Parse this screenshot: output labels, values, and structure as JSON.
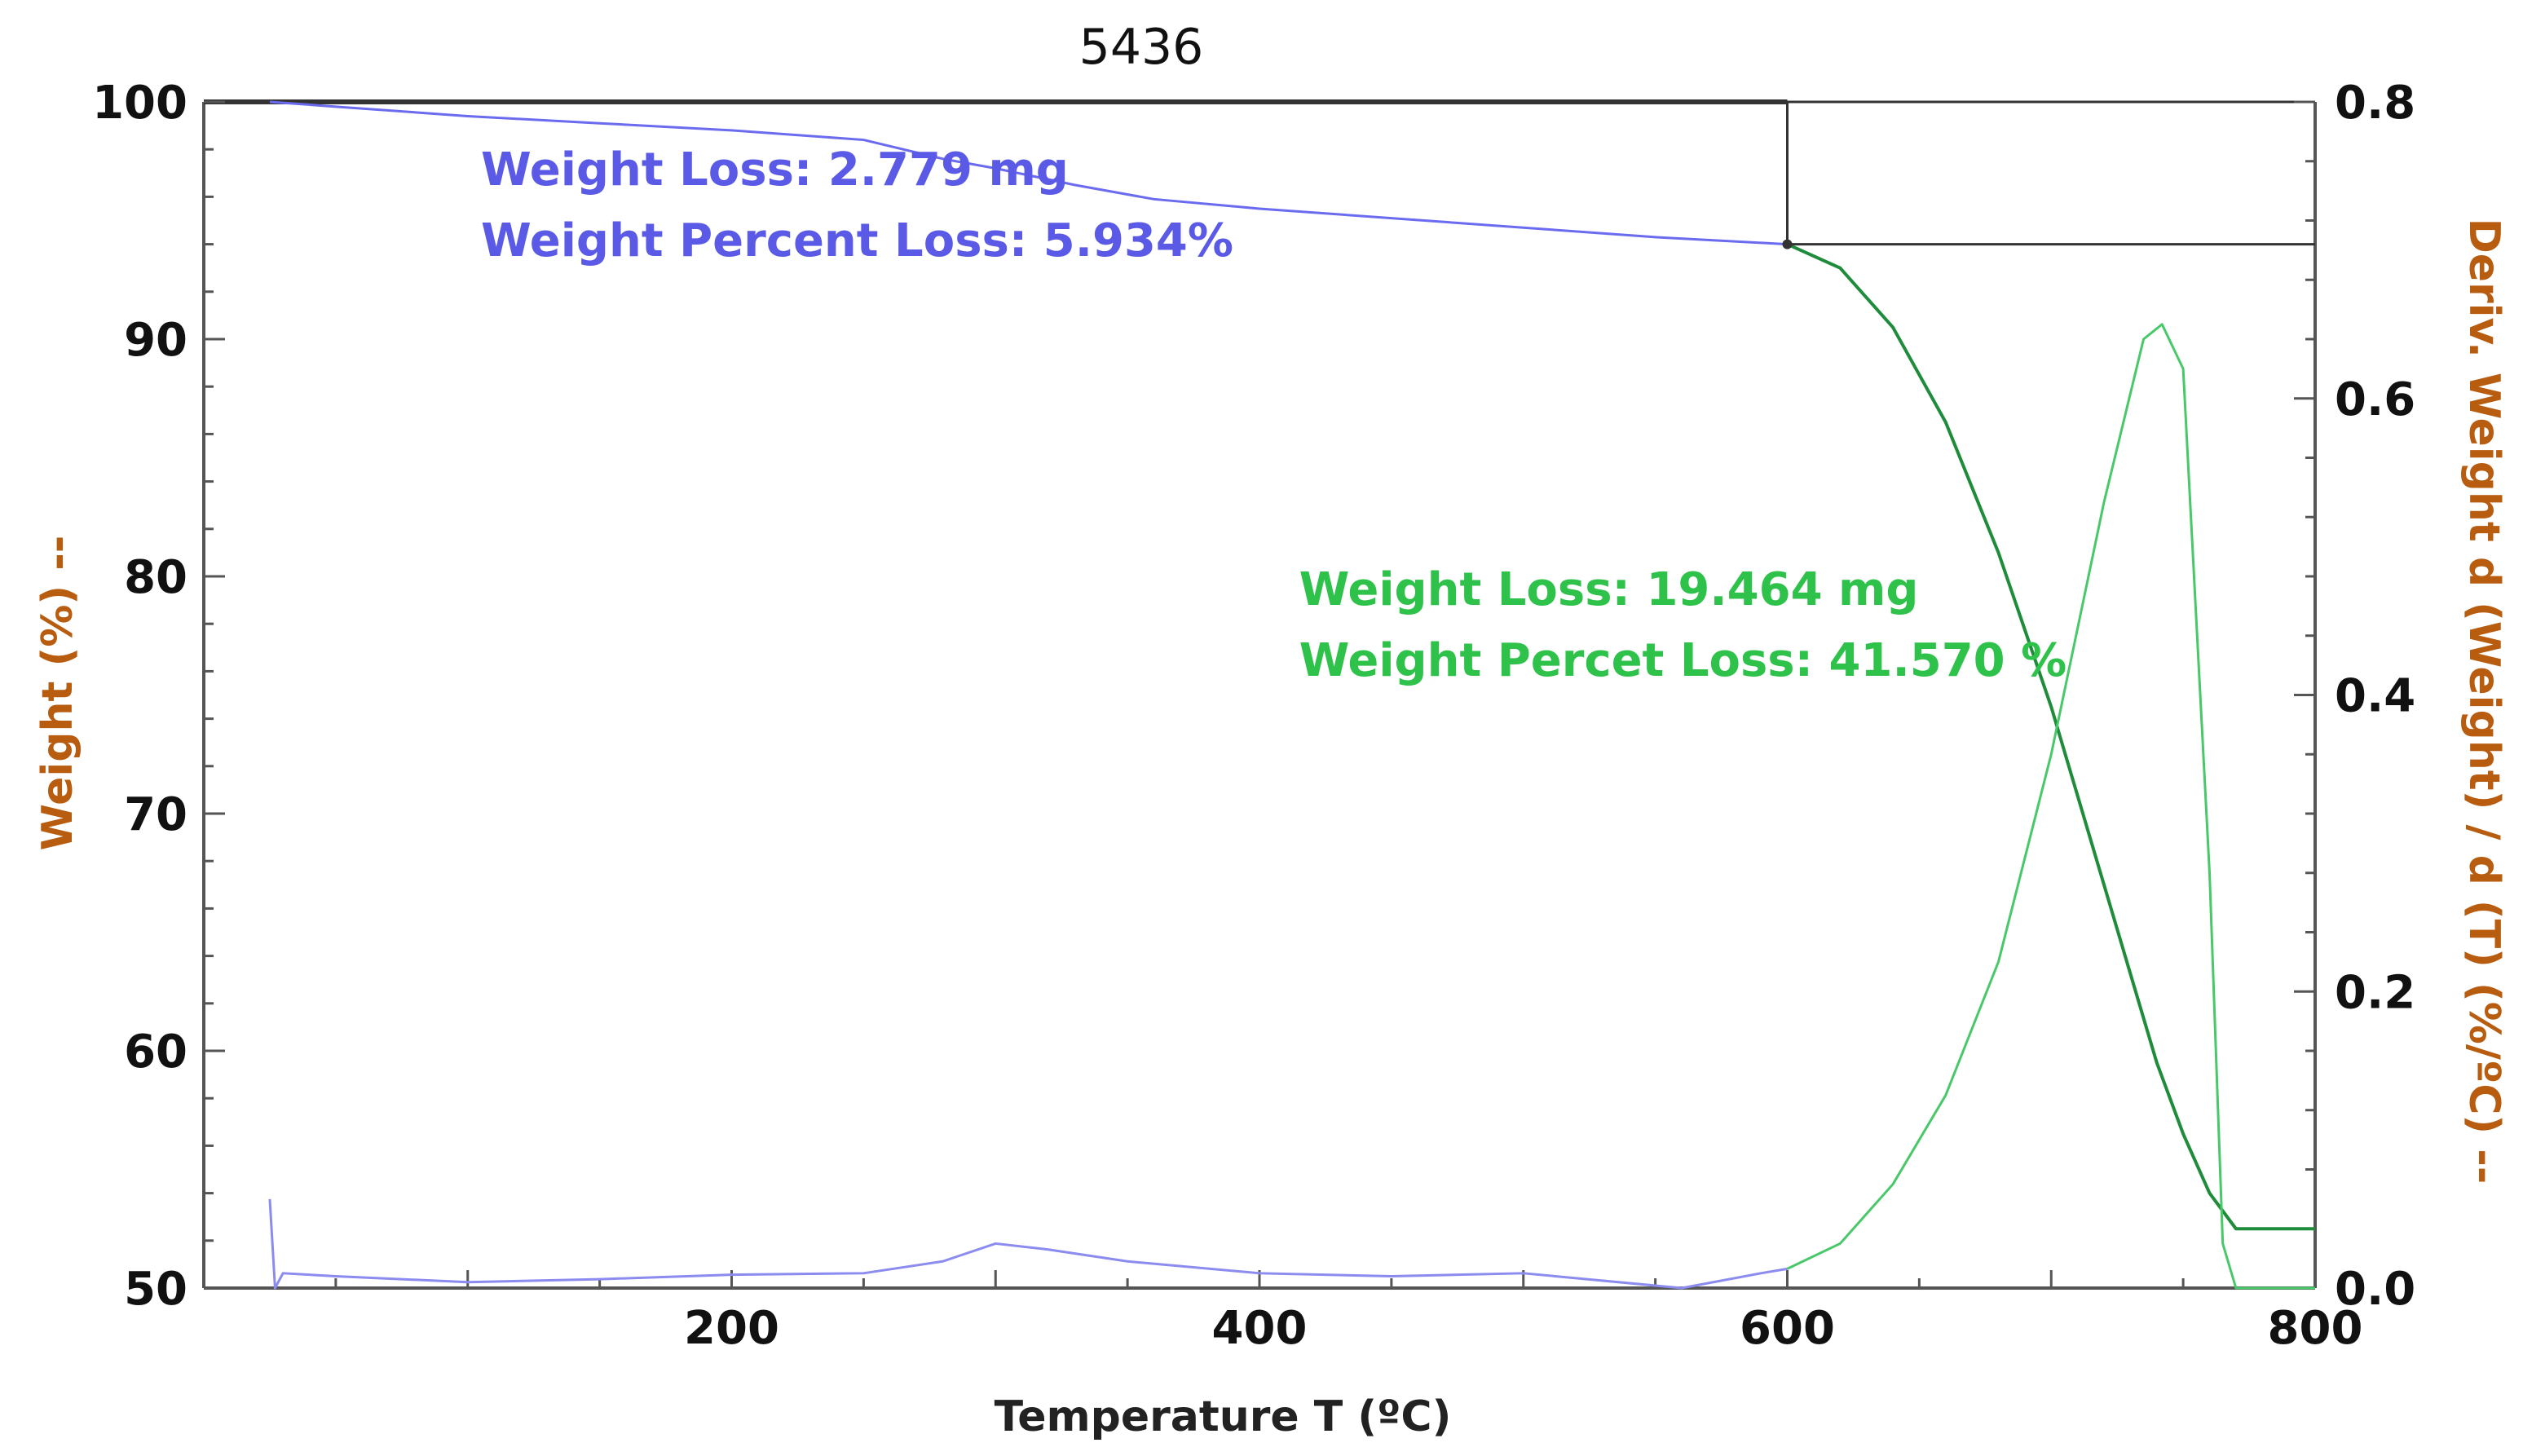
{
  "chart_data": {
    "type": "line",
    "title": "5436",
    "xlabel": "Temperature T (ºC)",
    "ylabel": "Weight (%) --",
    "y2label": "Deriv. Weight d (Weight) / d (T) (%/ºC) --",
    "xlim": [
      0,
      800
    ],
    "ylim": [
      50,
      100
    ],
    "y2lim": [
      0,
      0.8
    ],
    "x_ticks": [
      200,
      400,
      600,
      800
    ],
    "y_ticks": [
      50,
      60,
      70,
      80,
      90,
      100
    ],
    "y2_ticks": [
      "0.0",
      "0.2",
      "0.4",
      "0.6",
      "0.8"
    ],
    "grid": false,
    "colors": {
      "weight_stage1": "#6b6bef",
      "weight_stage2": "#1e8c3a",
      "deriv_stage1": "#8b8bf0",
      "deriv_stage2": "#48c868",
      "ylabel": "#b85c10",
      "y2label": "#b85c10",
      "axis": "#555555"
    },
    "series": [
      {
        "axis": "left",
        "x": [
          25,
          50,
          100,
          150,
          200,
          250,
          280,
          300,
          330,
          360,
          400,
          450,
          500,
          550,
          600
        ],
        "y": [
          100,
          99.8,
          99.4,
          99.1,
          98.8,
          98.4,
          97.6,
          97.2,
          96.5,
          95.9,
          95.5,
          95.1,
          94.7,
          94.3,
          94.0
        ]
      },
      {
        "axis": "left",
        "x": [
          600,
          620,
          640,
          660,
          680,
          700,
          720,
          740,
          750,
          760,
          770,
          800
        ],
        "y": [
          94.0,
          93.0,
          90.5,
          86.5,
          81.0,
          74.5,
          67.0,
          59.5,
          56.5,
          54.0,
          52.5,
          52.5
        ]
      },
      {
        "axis": "right",
        "x": [
          25,
          27,
          30,
          50,
          100,
          150,
          200,
          250,
          280,
          300,
          320,
          350,
          400,
          450,
          500,
          560,
          590,
          600
        ],
        "y": [
          0.06,
          0.0,
          0.01,
          0.008,
          0.004,
          0.006,
          0.009,
          0.01,
          0.018,
          0.03,
          0.026,
          0.018,
          0.01,
          0.008,
          0.01,
          0.0,
          0.01,
          0.013
        ]
      },
      {
        "axis": "right",
        "x": [
          600,
          620,
          640,
          660,
          680,
          700,
          720,
          735,
          742,
          750,
          760,
          765,
          770,
          800
        ],
        "y": [
          0.013,
          0.03,
          0.07,
          0.13,
          0.22,
          0.36,
          0.53,
          0.64,
          0.65,
          0.62,
          0.28,
          0.03,
          0.0,
          0.0
        ]
      }
    ],
    "markers": {
      "vertical_x": 600,
      "horizontal_y": 94.0
    },
    "annotations": [
      {
        "id": "stage1-loss",
        "text": "Weight Loss: 2.779 mg",
        "x": 105,
        "y": 96.5,
        "color": "#5a5ae6"
      },
      {
        "id": "stage1-percent",
        "text": "Weight Percent Loss: 5.934%",
        "x": 105,
        "y": 93.5,
        "color": "#5a5ae6"
      },
      {
        "id": "stage2-loss",
        "text": "Weight Loss: 19.464 mg",
        "x": 415,
        "y": 78.8,
        "color": "#2ec24a"
      },
      {
        "id": "stage2-percent",
        "text": "Weight Percet Loss: 41.570 %",
        "x": 415,
        "y": 75.8,
        "color": "#2ec24a"
      }
    ]
  }
}
